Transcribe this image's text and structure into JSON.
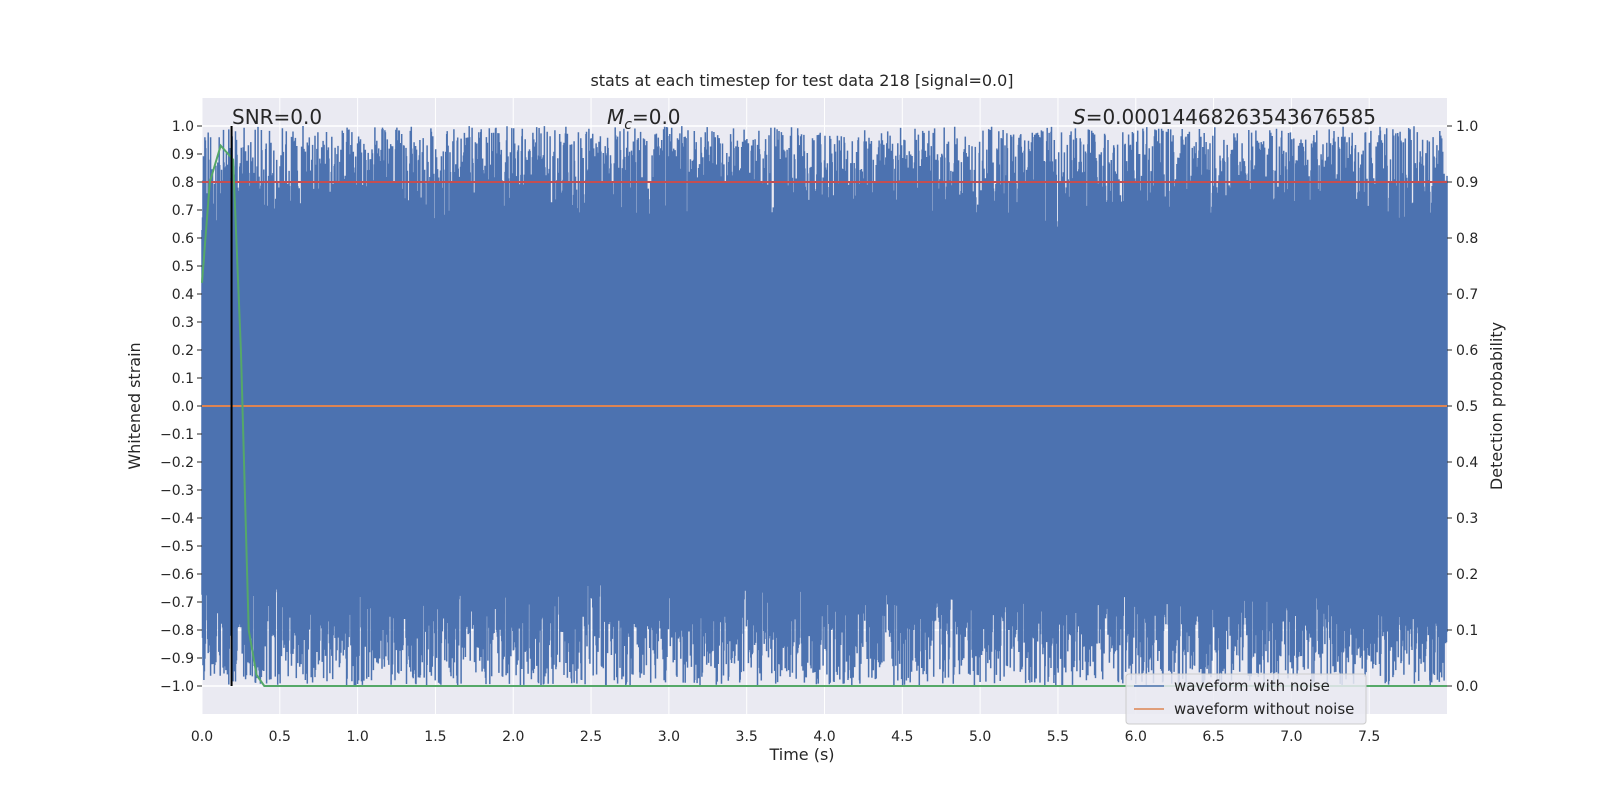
{
  "chart_data": {
    "type": "line",
    "title": "stats at each timestep for test data 218 [signal=0.0]",
    "xlabel": "Time (s)",
    "ylabel": "Whitened strain",
    "ylabel_right": "Detection probability",
    "xlim": [
      0.0,
      8.0
    ],
    "ylim": [
      -1.1,
      1.1
    ],
    "ylim_right": [
      -0.05,
      1.05
    ],
    "x_ticks": [
      "0.0",
      "0.5",
      "1.0",
      "1.5",
      "2.0",
      "2.5",
      "3.0",
      "3.5",
      "4.0",
      "4.5",
      "5.0",
      "5.5",
      "6.0",
      "6.5",
      "7.0",
      "7.5"
    ],
    "y_ticks": [
      "1.0",
      "0.9",
      "0.8",
      "0.7",
      "0.6",
      "0.5",
      "0.4",
      "0.3",
      "0.2",
      "0.1",
      "0.0",
      "−0.1",
      "−0.2",
      "−0.3",
      "−0.4",
      "−0.5",
      "−0.6",
      "−0.7",
      "−0.8",
      "−0.9",
      "−1.0"
    ],
    "y_ticks_right": [
      "1.0",
      "0.9",
      "0.8",
      "0.7",
      "0.6",
      "0.5",
      "0.4",
      "0.3",
      "0.2",
      "0.1",
      "0.0"
    ],
    "grid": true,
    "legend_position": "bottom-right",
    "annotations": {
      "snr": "SNR=0.0",
      "mc_symbol": "M",
      "mc_subscript": "c",
      "mc_value": "=0.0",
      "s_symbol": "S",
      "s_value": "=0.0001446826354367658 5"
    },
    "series": [
      {
        "name": "waveform with noise",
        "color": "#4c72b0",
        "axis": "left",
        "x_range": [
          0.0,
          8.0
        ],
        "y_range": [
          -1.0,
          1.0
        ],
        "description_style": "dense noise"
      },
      {
        "name": "waveform without noise",
        "color": "#dd8452",
        "axis": "left",
        "x": [
          0.0,
          8.0
        ],
        "y": [
          0.0,
          0.0
        ]
      },
      {
        "color": "#c44e52",
        "axis": "left",
        "x": [
          0.0,
          8.0
        ],
        "y": [
          0.8,
          0.8
        ]
      },
      {
        "color": "#55a868",
        "axis": "right",
        "x": [
          0.0,
          0.05,
          0.12,
          0.2,
          0.25,
          0.3,
          0.35,
          0.4,
          8.0
        ],
        "y": [
          0.72,
          0.9,
          0.965,
          0.94,
          0.6,
          0.1,
          0.02,
          0.0,
          0.0
        ]
      },
      {
        "color": "#000000",
        "axis": "left",
        "type": "vline",
        "x": 0.19
      }
    ]
  }
}
